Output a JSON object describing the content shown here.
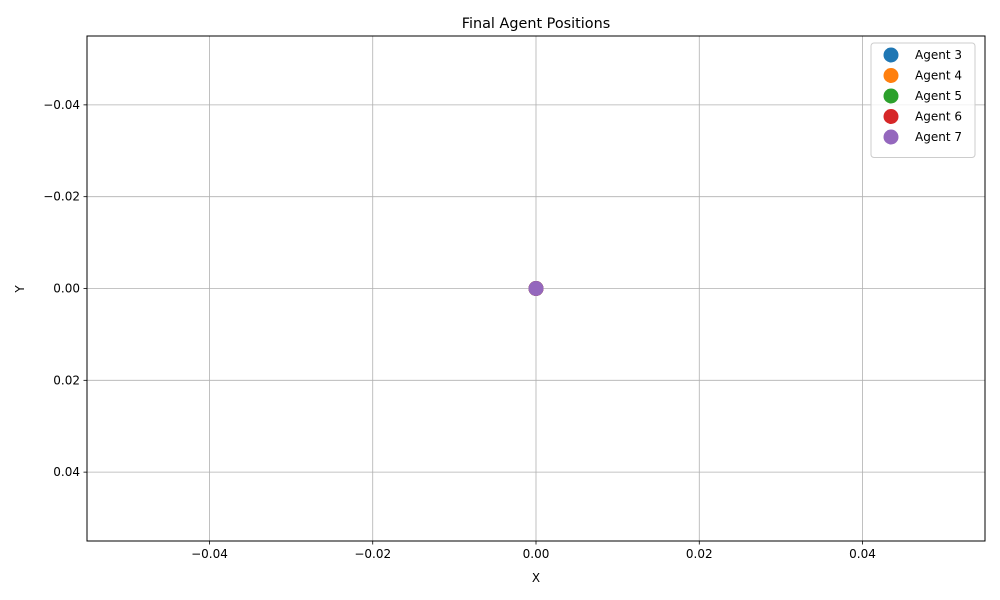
{
  "chart_data": {
    "type": "scatter",
    "title": "Final Agent Positions",
    "xlabel": "X",
    "ylabel": "Y",
    "xlim": [
      -0.055,
      0.055
    ],
    "ylim": [
      -0.055,
      0.055
    ],
    "y_inverted": true,
    "grid": true,
    "legend_position": "top-right",
    "x_ticks": [
      -0.04,
      -0.02,
      0.0,
      0.02,
      0.04
    ],
    "y_ticks": [
      -0.04,
      -0.02,
      0.0,
      0.02,
      0.04
    ],
    "x_tick_labels": [
      "−0.04",
      "−0.02",
      "0.00",
      "0.02",
      "0.04"
    ],
    "y_tick_labels": [
      "−0.04",
      "−0.02",
      "0.00",
      "0.02",
      "0.04"
    ],
    "series": [
      {
        "name": "Agent 3",
        "color": "#1f77b4",
        "points": [
          [
            0.0,
            0.0
          ]
        ]
      },
      {
        "name": "Agent 4",
        "color": "#ff7f0e",
        "points": [
          [
            0.0,
            0.0
          ]
        ]
      },
      {
        "name": "Agent 5",
        "color": "#2ca02c",
        "points": [
          [
            0.0,
            0.0
          ]
        ]
      },
      {
        "name": "Agent 6",
        "color": "#d62728",
        "points": [
          [
            0.0,
            0.0
          ]
        ]
      },
      {
        "name": "Agent 7",
        "color": "#9467bd",
        "points": [
          [
            0.0,
            0.0
          ]
        ]
      }
    ]
  }
}
